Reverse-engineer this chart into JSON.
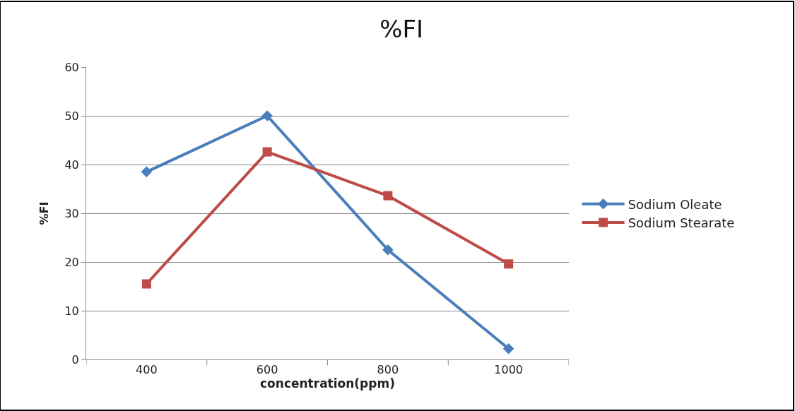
{
  "chart_data": {
    "type": "line",
    "title": "%FI",
    "xlabel": "concentration(ppm)",
    "ylabel": "%FI",
    "categories": [
      "400",
      "600",
      "800",
      "1000"
    ],
    "series": [
      {
        "name": "Sodium Oleate",
        "color": "#4a7ebb",
        "marker": "diamond",
        "values": [
          38.5,
          50,
          22.5,
          2.2
        ]
      },
      {
        "name": "Sodium Stearate",
        "color": "#be4b48",
        "marker": "square",
        "values": [
          15.5,
          42.6,
          33.6,
          19.6
        ]
      }
    ],
    "ylim": [
      0,
      60
    ],
    "yticks": [
      0,
      10,
      20,
      30,
      40,
      50,
      60
    ],
    "grid": "y",
    "legend": "right"
  }
}
